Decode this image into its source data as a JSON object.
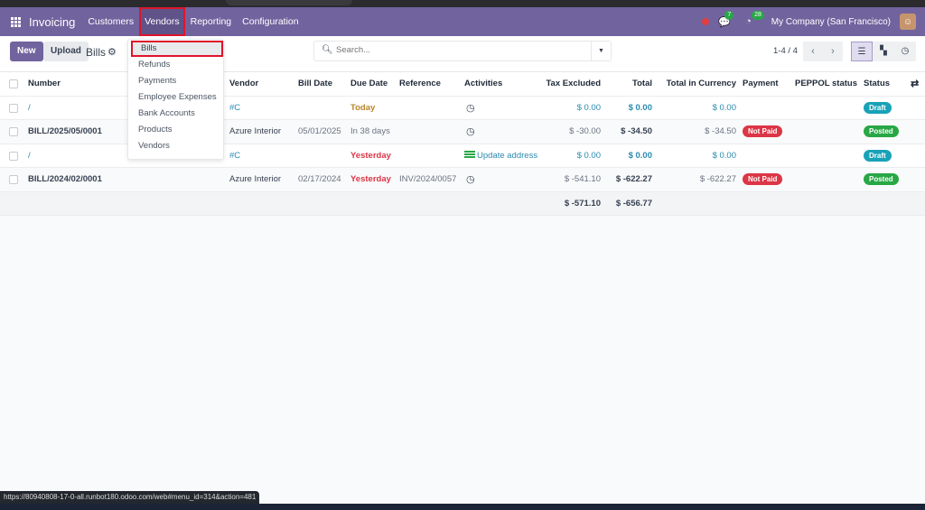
{
  "navbar": {
    "app": "Invoicing",
    "menus": [
      "Customers",
      "Vendors",
      "Reporting",
      "Configuration"
    ],
    "active_menu": "Vendors",
    "messages_count": "7",
    "activities_count": "28",
    "company": "My Company (San Francisco)"
  },
  "dropdown": {
    "items": [
      "Bills",
      "Refunds",
      "Payments",
      "Employee Expenses",
      "Bank Accounts",
      "Products",
      "Vendors"
    ],
    "selected": "Bills"
  },
  "control_panel": {
    "new_label": "New",
    "upload_label": "Upload",
    "title": "Bills",
    "search_placeholder": "Search...",
    "pager": "1-4 / 4"
  },
  "table": {
    "headers": [
      "Number",
      "Vendor",
      "Bill Date",
      "Due Date",
      "Reference",
      "Activities",
      "Tax Excluded",
      "Total",
      "Total in Currency",
      "Payment",
      "PEPPOL status",
      "Status"
    ],
    "rows": [
      {
        "number": "/",
        "vendor": "#C",
        "bill_date": "",
        "due_date": "Today",
        "reference": "",
        "activity": "",
        "tax_excluded": "$ 0.00",
        "total": "$ 0.00",
        "total_currency": "$ 0.00",
        "payment": "",
        "status": "Draft"
      },
      {
        "number": "BILL/2025/05/0001",
        "vendor": "Azure Interior",
        "bill_date": "05/01/2025",
        "due_date": "In 38 days",
        "reference": "",
        "activity": "",
        "tax_excluded": "$ -30.00",
        "total": "$ -34.50",
        "total_currency": "$ -34.50",
        "payment": "Not Paid",
        "status": "Posted"
      },
      {
        "number": "/",
        "vendor": "#C",
        "bill_date": "",
        "due_date": "Yesterday",
        "reference": "",
        "activity": "Update address",
        "tax_excluded": "$ 0.00",
        "total": "$ 0.00",
        "total_currency": "$ 0.00",
        "payment": "",
        "status": "Draft"
      },
      {
        "number": "BILL/2024/02/0001",
        "vendor": "Azure Interior",
        "bill_date": "02/17/2024",
        "due_date": "Yesterday",
        "reference": "INV/2024/0057",
        "activity": "",
        "tax_excluded": "$ -541.10",
        "total": "$ -622.27",
        "total_currency": "$ -622.27",
        "payment": "Not Paid",
        "status": "Posted"
      }
    ],
    "totals": {
      "tax_excluded": "$ -571.10",
      "total": "$ -656.77"
    }
  },
  "status_bar": {
    "url": "https://80940808-17-0-all.runbot180.odoo.com/web#menu_id=314&action=481"
  },
  "colors": {
    "brand": "#71639e",
    "draft": "#17a2b8",
    "posted": "#28a745",
    "not_paid": "#dc3545"
  }
}
